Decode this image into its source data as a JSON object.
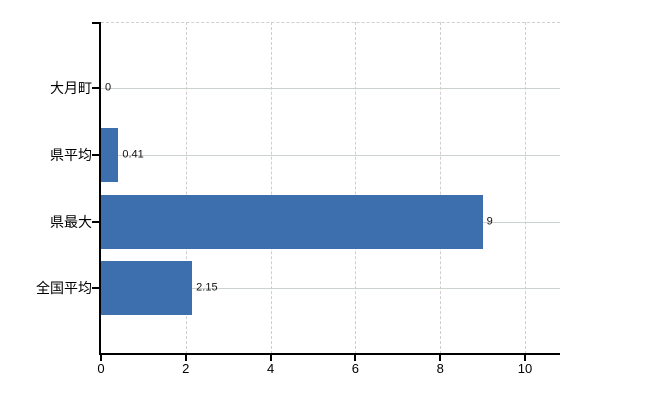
{
  "chart_data": {
    "type": "bar",
    "orientation": "horizontal",
    "title": "",
    "xlabel": "",
    "ylabel": "",
    "categories": [
      "大月町",
      "県平均",
      "県最大",
      "全国平均"
    ],
    "values": [
      0,
      0.41,
      9,
      2.15
    ],
    "value_labels": [
      "0",
      "0.41",
      "9",
      "2.15"
    ],
    "xlim": [
      0,
      10
    ],
    "xticks": [
      0,
      2,
      4,
      6,
      8,
      10
    ],
    "xtick_labels": [
      "0",
      "2",
      "4",
      "6",
      "8",
      "10"
    ],
    "grid": true,
    "legend": false,
    "colors": {
      "bar": "#3d6ead",
      "axis": "#000000",
      "grid_horizontal": "#ccd3cd",
      "grid_vertical": "#d0ccd2",
      "text": "#000000",
      "background": "#ffffff"
    }
  }
}
